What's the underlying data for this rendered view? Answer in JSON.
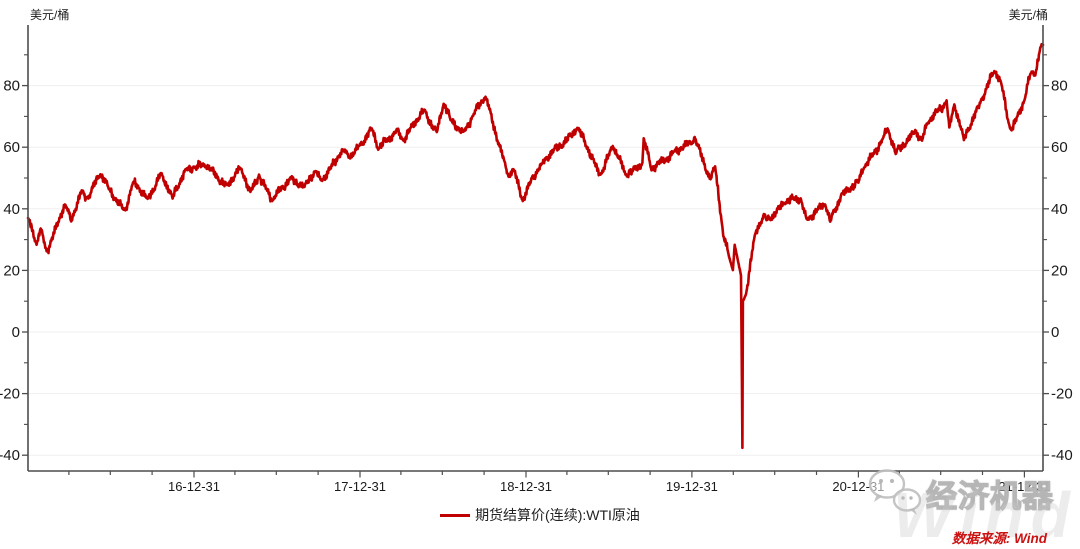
{
  "colors": {
    "line": "#c00000",
    "axis": "#4d4d4d",
    "label": "#1a1a1a",
    "grid": "#efefef",
    "source": "#cc1111",
    "watermark": "#d9d9d9"
  },
  "watermark": {
    "brand": "经济机器",
    "big_text": "Wind",
    "icon": "wechat-chat-bubbles-icon"
  },
  "chart_data": {
    "type": "line",
    "title": "",
    "unit_left": "美元/桶",
    "unit_right": "美元/桶",
    "source_note": "数据来源: Wind",
    "grid": "horizontal-only",
    "legend_position": "bottom-center",
    "legend": [
      {
        "name": "期货结算价(连续):WTI原油",
        "color": "#c00000"
      }
    ],
    "y_axis": {
      "ticks": [
        80,
        60,
        40,
        20,
        0,
        -20,
        -40
      ],
      "minor_step": 10,
      "ylim": [
        -45,
        99
      ]
    },
    "x_axis": {
      "start_date": "2016-01-01",
      "end_date": "2022-02-10",
      "tick_labels": [
        "16-12-31",
        "17-12-31",
        "18-12-31",
        "19-12-31",
        "20-12-31",
        "21-12-31"
      ],
      "minor_ticks": "quarterly"
    },
    "series": [
      {
        "name": "期货结算价(连续):WTI原油",
        "color": "#c00000",
        "keypoints": [
          [
            "2016-01-01",
            37.0
          ],
          [
            "2016-01-20",
            28.3
          ],
          [
            "2016-01-29",
            33.6
          ],
          [
            "2016-02-11",
            26.2
          ],
          [
            "2016-03-22",
            41.4
          ],
          [
            "2016-04-05",
            35.9
          ],
          [
            "2016-04-28",
            46.0
          ],
          [
            "2016-05-10",
            43.6
          ],
          [
            "2016-06-08",
            51.2
          ],
          [
            "2016-06-27",
            46.3
          ],
          [
            "2016-08-02",
            39.5
          ],
          [
            "2016-08-19",
            48.5
          ],
          [
            "2016-09-20",
            43.2
          ],
          [
            "2016-10-19",
            51.6
          ],
          [
            "2016-11-14",
            43.3
          ],
          [
            "2016-12-12",
            52.8
          ],
          [
            "2016-12-30",
            53.7
          ],
          [
            "2017-01-26",
            53.8
          ],
          [
            "2017-03-14",
            47.7
          ],
          [
            "2017-04-12",
            53.1
          ],
          [
            "2017-05-04",
            45.5
          ],
          [
            "2017-05-23",
            51.1
          ],
          [
            "2017-06-21",
            42.5
          ],
          [
            "2017-07-31",
            50.2
          ],
          [
            "2017-08-31",
            47.1
          ],
          [
            "2017-09-25",
            52.2
          ],
          [
            "2017-10-06",
            49.3
          ],
          [
            "2017-11-24",
            58.9
          ],
          [
            "2017-12-07",
            56.6
          ],
          [
            "2017-12-29",
            60.4
          ],
          [
            "2018-01-26",
            66.1
          ],
          [
            "2018-02-09",
            59.2
          ],
          [
            "2018-03-23",
            65.9
          ],
          [
            "2018-04-06",
            62.1
          ],
          [
            "2018-05-21",
            72.2
          ],
          [
            "2018-06-18",
            64.9
          ],
          [
            "2018-07-03",
            74.1
          ],
          [
            "2018-07-18",
            68.8
          ],
          [
            "2018-08-15",
            65.0
          ],
          [
            "2018-09-04",
            69.9
          ],
          [
            "2018-10-03",
            76.4
          ],
          [
            "2018-11-13",
            55.7
          ],
          [
            "2018-11-23",
            50.4
          ],
          [
            "2018-12-03",
            52.9
          ],
          [
            "2018-12-24",
            42.5
          ],
          [
            "2019-01-14",
            50.5
          ],
          [
            "2019-02-04",
            54.6
          ],
          [
            "2019-04-23",
            66.3
          ],
          [
            "2019-06-12",
            51.1
          ],
          [
            "2019-07-10",
            60.4
          ],
          [
            "2019-08-07",
            51.1
          ],
          [
            "2019-09-13",
            54.9
          ],
          [
            "2019-09-16",
            62.9
          ],
          [
            "2019-10-03",
            52.5
          ],
          [
            "2019-11-21",
            58.6
          ],
          [
            "2019-12-31",
            61.1
          ],
          [
            "2020-01-06",
            63.3
          ],
          [
            "2020-02-10",
            49.6
          ],
          [
            "2020-02-20",
            53.8
          ],
          [
            "2020-03-09",
            31.1
          ],
          [
            "2020-03-30",
            20.1
          ],
          [
            "2020-04-03",
            28.3
          ],
          [
            "2020-04-17",
            18.3
          ],
          [
            "2020-04-20",
            -37.6
          ],
          [
            "2020-04-21",
            10.0
          ],
          [
            "2020-04-28",
            12.3
          ],
          [
            "2020-05-18",
            31.8
          ],
          [
            "2020-06-08",
            38.2
          ],
          [
            "2020-06-12",
            36.3
          ],
          [
            "2020-07-21",
            41.9
          ],
          [
            "2020-08-26",
            43.4
          ],
          [
            "2020-09-08",
            36.8
          ],
          [
            "2020-10-19",
            41.4
          ],
          [
            "2020-10-30",
            35.8
          ],
          [
            "2020-11-24",
            44.9
          ],
          [
            "2020-12-31",
            48.5
          ],
          [
            "2021-01-12",
            53.2
          ],
          [
            "2021-02-24",
            63.2
          ],
          [
            "2021-03-05",
            66.1
          ],
          [
            "2021-03-23",
            57.8
          ],
          [
            "2021-05-05",
            65.6
          ],
          [
            "2021-05-20",
            62.1
          ],
          [
            "2021-06-01",
            67.7
          ],
          [
            "2021-07-13",
            75.2
          ],
          [
            "2021-07-19",
            66.4
          ],
          [
            "2021-07-30",
            73.9
          ],
          [
            "2021-08-20",
            62.3
          ],
          [
            "2021-09-27",
            75.5
          ],
          [
            "2021-10-26",
            84.7
          ],
          [
            "2021-11-10",
            80.8
          ],
          [
            "2021-11-26",
            68.2
          ],
          [
            "2021-12-02",
            65.6
          ],
          [
            "2021-12-31",
            75.2
          ],
          [
            "2022-01-14",
            84.0
          ],
          [
            "2022-01-24",
            83.3
          ],
          [
            "2022-02-04",
            92.3
          ],
          [
            "2022-02-10",
            93.2
          ]
        ]
      }
    ]
  }
}
